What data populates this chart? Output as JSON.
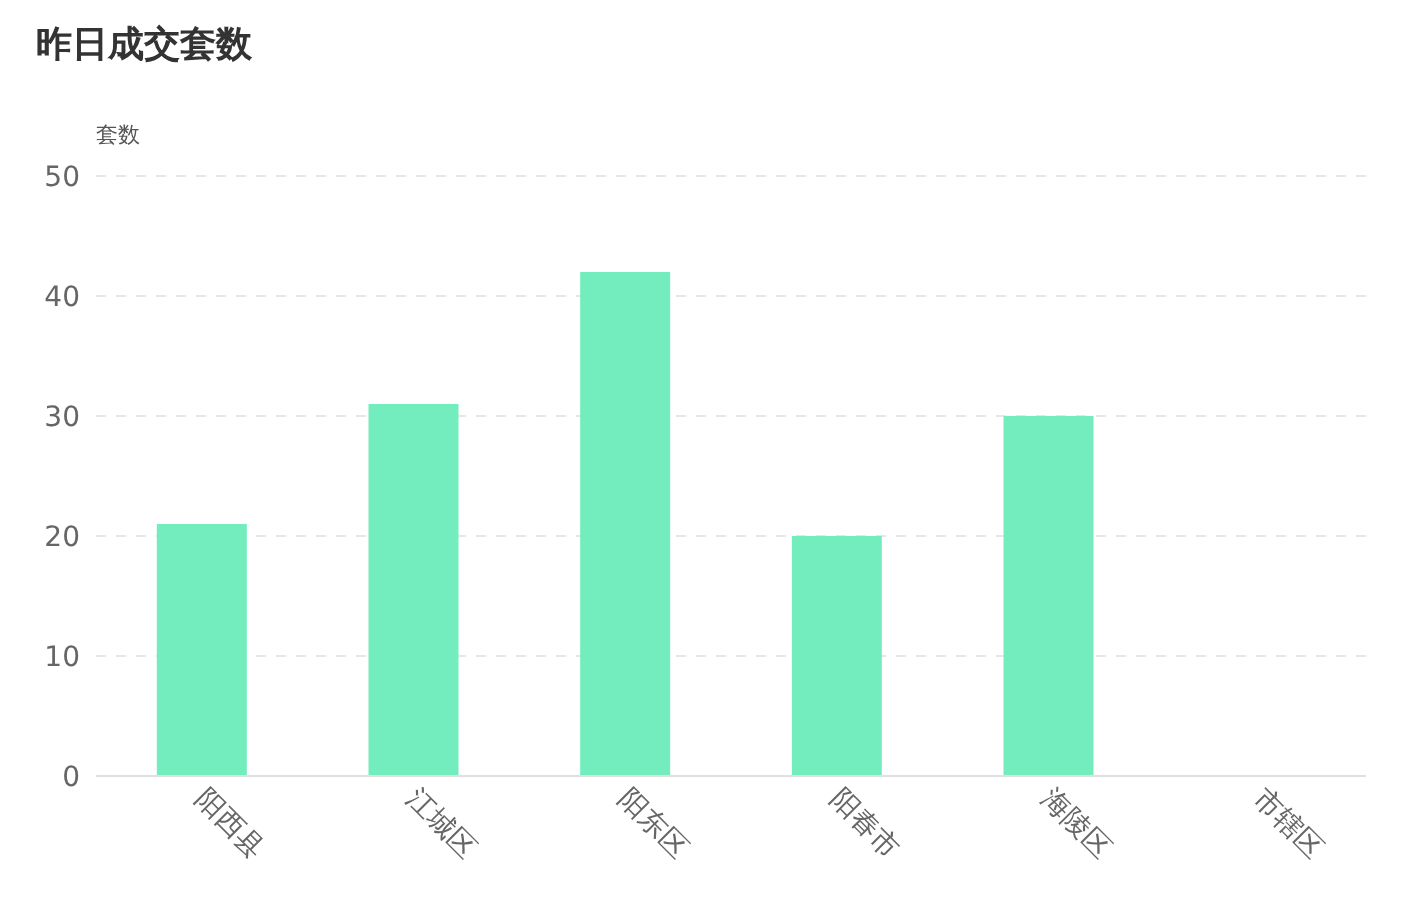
{
  "chart_data": {
    "type": "bar",
    "title": "昨日成交套数",
    "ylabel": "套数",
    "categories": [
      "阳西县",
      "江城区",
      "阳东区",
      "阳春市",
      "海陵区",
      "市辖区"
    ],
    "values": [
      21,
      31,
      42,
      20,
      30,
      0
    ],
    "color": "#73edbe",
    "ylim": [
      0,
      50
    ],
    "yticks": [
      0,
      10,
      20,
      30,
      40,
      50
    ],
    "grid": "y"
  }
}
